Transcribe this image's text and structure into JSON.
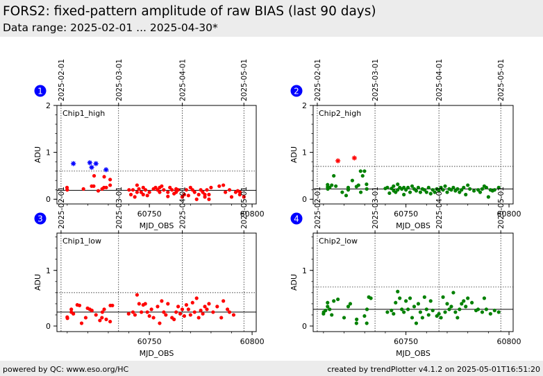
{
  "title": "FORS2: fixed-pattern amplitude of raw BIAS (last 90 days)",
  "subtitle": "Data range: 2025-02-01 ... 2025-04-30*",
  "footer": {
    "left": "powered by QC: www.eso.org/HC",
    "right": "created by trendPlotter v4.1.2 on 2025-05-01T16:51:20"
  },
  "colors": {
    "chip1": "#ff0000",
    "chip2": "#008000",
    "outlier_chip1": "#0000ff",
    "outlier_chip2": "#ff0000",
    "badge": "#0000ff"
  },
  "chart_data": [
    {
      "panel": "1",
      "type": "scatter",
      "label": "Chip1_high",
      "xlabel": "MJD_OBS",
      "ylabel": "ADU",
      "xlim": [
        60705,
        60802
      ],
      "ylim": [
        -0.1,
        2.0
      ],
      "xticks": [
        60750,
        60800
      ],
      "yticks": [
        0,
        1,
        2
      ],
      "date_ticks": [
        {
          "x": 60707,
          "label": "2025-02-01"
        },
        {
          "x": 60735,
          "label": "2025-03-01"
        },
        {
          "x": 60766,
          "label": "2025-04-01"
        },
        {
          "x": 60796,
          "label": "2025-05-01"
        }
      ],
      "median": 0.19,
      "threshold": 0.6,
      "points": [
        [
          60709.9,
          0.25
        ],
        [
          60710.0,
          0.2
        ],
        [
          60717.9,
          0.22
        ],
        [
          60721.9,
          0.28
        ],
        [
          60722.9,
          0.28
        ],
        [
          60723.1,
          0.5
        ],
        [
          60725.1,
          0.18
        ],
        [
          60727.0,
          0.22
        ],
        [
          60727.9,
          0.25
        ],
        [
          60728.0,
          0.48
        ],
        [
          60729.0,
          0.25
        ],
        [
          60730.9,
          0.42
        ],
        [
          60730.9,
          0.3
        ],
        [
          60740.1,
          0.2
        ],
        [
          60741.0,
          0.1
        ],
        [
          60742.0,
          0.2
        ],
        [
          60742.9,
          0.05
        ],
        [
          60744.0,
          0.3
        ],
        [
          60744.0,
          0.15
        ],
        [
          60744.9,
          0.22
        ],
        [
          60746.0,
          0.15
        ],
        [
          60747.0,
          0.1
        ],
        [
          60747.0,
          0.25
        ],
        [
          60748.1,
          0.2
        ],
        [
          60749.0,
          0.08
        ],
        [
          60750.0,
          0.15
        ],
        [
          60752.0,
          0.22
        ],
        [
          60753.0,
          0.25
        ],
        [
          60754.0,
          0.2
        ],
        [
          60755.0,
          0.15
        ],
        [
          60755.0,
          0.25
        ],
        [
          60756.0,
          0.28
        ],
        [
          60757.0,
          0.2
        ],
        [
          60759.0,
          0.06
        ],
        [
          60759.0,
          0.15
        ],
        [
          60760.0,
          0.25
        ],
        [
          60761.0,
          0.2
        ],
        [
          60762.0,
          0.12
        ],
        [
          60763.0,
          0.15
        ],
        [
          60763.0,
          0.22
        ],
        [
          60764.0,
          0.2
        ],
        [
          60766.0,
          0.05
        ],
        [
          60767.0,
          0.1
        ],
        [
          60768.0,
          0.2
        ],
        [
          60769.0,
          0.08
        ],
        [
          60770.0,
          0.25
        ],
        [
          60771.0,
          0.2
        ],
        [
          60772.0,
          0.15
        ],
        [
          60773.0,
          0.0
        ],
        [
          60774.0,
          0.1
        ],
        [
          60775.0,
          0.2
        ],
        [
          60776.0,
          0.15
        ],
        [
          60777.0,
          0.05
        ],
        [
          60777.0,
          0.1
        ],
        [
          60778.0,
          0.2
        ],
        [
          60779.0,
          0.0
        ],
        [
          60779.0,
          0.1
        ],
        [
          60780.0,
          0.25
        ],
        [
          60784.0,
          0.28
        ],
        [
          60786.0,
          0.3
        ],
        [
          60787.0,
          0.15
        ],
        [
          60789.0,
          0.2
        ],
        [
          60790.0,
          0.05
        ],
        [
          60792.0,
          0.15
        ],
        [
          60793.0,
          0.18
        ],
        [
          60794.0,
          0.1
        ],
        [
          60794.1,
          0.15
        ],
        [
          60796.0,
          0.05
        ]
      ],
      "outliers": [
        [
          60713.0,
          0.76
        ],
        [
          60721.0,
          0.78
        ],
        [
          60721.9,
          0.68
        ],
        [
          60724.0,
          0.76
        ],
        [
          60728.9,
          0.63
        ]
      ]
    },
    {
      "panel": "2",
      "type": "scatter",
      "label": "Chip2_high",
      "xlabel": "MJD_OBS",
      "ylabel": "ADU",
      "xlim": [
        60705,
        60802
      ],
      "ylim": [
        -0.1,
        2.0
      ],
      "xticks": [
        60750,
        60800
      ],
      "yticks": [
        0,
        1,
        2
      ],
      "date_ticks": [
        {
          "x": 60707,
          "label": "2025-02-01"
        },
        {
          "x": 60735,
          "label": "2025-03-01"
        },
        {
          "x": 60766,
          "label": "2025-04-01"
        },
        {
          "x": 60796,
          "label": "2025-05-01"
        }
      ],
      "median": 0.22,
      "threshold": 0.7,
      "points": [
        [
          60712.0,
          0.26
        ],
        [
          60712.0,
          0.31
        ],
        [
          60712.1,
          0.22
        ],
        [
          60713.0,
          0.25
        ],
        [
          60714.0,
          0.3
        ],
        [
          60715.0,
          0.5
        ],
        [
          60716.0,
          0.28
        ],
        [
          60719.1,
          0.15
        ],
        [
          60721.0,
          0.08
        ],
        [
          60722.0,
          0.25
        ],
        [
          60722.0,
          0.2
        ],
        [
          60724.0,
          0.4
        ],
        [
          60726.0,
          0.27
        ],
        [
          60727.0,
          0.3
        ],
        [
          60728.0,
          0.6
        ],
        [
          60728.1,
          0.15
        ],
        [
          60729.0,
          0.5
        ],
        [
          60729.9,
          0.6
        ],
        [
          60730.9,
          0.32
        ],
        [
          60731.0,
          0.22
        ],
        [
          60740.0,
          0.23
        ],
        [
          60741.0,
          0.25
        ],
        [
          60742.0,
          0.13
        ],
        [
          60743.0,
          0.23
        ],
        [
          60744.0,
          0.28
        ],
        [
          60744.1,
          0.18
        ],
        [
          60745.0,
          0.15
        ],
        [
          60746.0,
          0.32
        ],
        [
          60746.0,
          0.2
        ],
        [
          60747.0,
          0.25
        ],
        [
          60748.0,
          0.22
        ],
        [
          60749.0,
          0.1
        ],
        [
          60749.0,
          0.25
        ],
        [
          60750.0,
          0.2
        ],
        [
          60751.0,
          0.25
        ],
        [
          60752.0,
          0.15
        ],
        [
          60753.0,
          0.28
        ],
        [
          60754.0,
          0.22
        ],
        [
          60755.0,
          0.18
        ],
        [
          60756.0,
          0.25
        ],
        [
          60757.0,
          0.15
        ],
        [
          60758.0,
          0.22
        ],
        [
          60759.0,
          0.2
        ],
        [
          60760.0,
          0.15
        ],
        [
          60761.0,
          0.25
        ],
        [
          60762.0,
          0.12
        ],
        [
          60763.0,
          0.2
        ],
        [
          60764.0,
          0.15
        ],
        [
          60765.0,
          0.22
        ],
        [
          60766.0,
          0.18
        ],
        [
          60767.0,
          0.25
        ],
        [
          60768.0,
          0.2
        ],
        [
          60769.0,
          0.28
        ],
        [
          60770.0,
          0.15
        ],
        [
          60771.0,
          0.22
        ],
        [
          60772.0,
          0.2
        ],
        [
          60773.0,
          0.25
        ],
        [
          60774.0,
          0.18
        ],
        [
          60775.0,
          0.22
        ],
        [
          60776.0,
          0.15
        ],
        [
          60777.0,
          0.2
        ],
        [
          60778.0,
          0.25
        ],
        [
          60779.0,
          0.1
        ],
        [
          60780.0,
          0.3
        ],
        [
          60781.0,
          0.22
        ],
        [
          60783.0,
          0.18
        ],
        [
          60785.0,
          0.2
        ],
        [
          60786.0,
          0.15
        ],
        [
          60787.0,
          0.22
        ],
        [
          60788.0,
          0.28
        ],
        [
          60789.0,
          0.25
        ],
        [
          60790.0,
          0.05
        ],
        [
          60791.0,
          0.2
        ],
        [
          60792.0,
          0.18
        ],
        [
          60793.0,
          0.2
        ],
        [
          60795.0,
          0.25
        ]
      ],
      "outliers": [
        [
          60717.0,
          0.82
        ],
        [
          60725.0,
          0.88
        ]
      ]
    },
    {
      "panel": "3",
      "type": "scatter",
      "label": "Chip1_low",
      "xlabel": "MJD_OBS",
      "ylabel": "ADU",
      "xlim": [
        60705,
        60802
      ],
      "ylim": [
        -0.1,
        1.67
      ],
      "xticks": [
        60750,
        60800
      ],
      "yticks": [
        0,
        1
      ],
      "date_ticks": [
        {
          "x": 60707,
          "label": "2025-02-01"
        },
        {
          "x": 60735,
          "label": "2025-03-01"
        },
        {
          "x": 60766,
          "label": "2025-04-01"
        },
        {
          "x": 60796,
          "label": "2025-05-01"
        }
      ],
      "median": 0.25,
      "threshold": 0.6,
      "points": [
        [
          60710.0,
          0.16
        ],
        [
          60710.1,
          0.14
        ],
        [
          60712.0,
          0.3
        ],
        [
          60712.0,
          0.25
        ],
        [
          60713.0,
          0.22
        ],
        [
          60714.9,
          0.38
        ],
        [
          60716.0,
          0.37
        ],
        [
          60717.0,
          0.05
        ],
        [
          60719.0,
          0.15
        ],
        [
          60719.9,
          0.32
        ],
        [
          60721.0,
          0.3
        ],
        [
          60722.0,
          0.28
        ],
        [
          60724.0,
          0.2
        ],
        [
          60725.9,
          0.1
        ],
        [
          60726.9,
          0.15
        ],
        [
          60727.1,
          0.25
        ],
        [
          60728.0,
          0.3
        ],
        [
          60729.0,
          0.12
        ],
        [
          60730.9,
          0.08
        ],
        [
          60731.0,
          0.37
        ],
        [
          60732.0,
          0.37
        ],
        [
          60739.9,
          0.22
        ],
        [
          60742.0,
          0.25
        ],
        [
          60743.0,
          0.2
        ],
        [
          60744.0,
          0.56
        ],
        [
          60745.0,
          0.4
        ],
        [
          60746.1,
          0.25
        ],
        [
          60747.0,
          0.38
        ],
        [
          60748.0,
          0.4
        ],
        [
          60749.0,
          0.25
        ],
        [
          60750.0,
          0.18
        ],
        [
          60751.0,
          0.3
        ],
        [
          60752.0,
          0.15
        ],
        [
          60754.0,
          0.35
        ],
        [
          60755.0,
          0.05
        ],
        [
          60756.0,
          0.45
        ],
        [
          60757.0,
          0.25
        ],
        [
          60758.0,
          0.2
        ],
        [
          60759.0,
          0.4
        ],
        [
          60761.0,
          0.15
        ],
        [
          60762.0,
          0.12
        ],
        [
          60763.0,
          0.25
        ],
        [
          60764.0,
          0.35
        ],
        [
          60765.0,
          0.22
        ],
        [
          60766.0,
          0.3
        ],
        [
          60767.0,
          0.18
        ],
        [
          60768.0,
          0.38
        ],
        [
          60769.0,
          0.3
        ],
        [
          60770.0,
          0.2
        ],
        [
          60771.0,
          0.42
        ],
        [
          60772.0,
          0.25
        ],
        [
          60773.0,
          0.5
        ],
        [
          60774.0,
          0.15
        ],
        [
          60775.0,
          0.28
        ],
        [
          60776.0,
          0.22
        ],
        [
          60777.0,
          0.35
        ],
        [
          60778.0,
          0.3
        ],
        [
          60779.0,
          0.4
        ],
        [
          60781.0,
          0.25
        ],
        [
          60783.0,
          0.35
        ],
        [
          60785.0,
          0.15
        ],
        [
          60786.0,
          0.45
        ],
        [
          60788.0,
          0.3
        ],
        [
          60789.0,
          0.25
        ],
        [
          60791.0,
          0.2
        ]
      ],
      "outliers": []
    },
    {
      "panel": "4",
      "type": "scatter",
      "label": "Chip2_low",
      "xlabel": "MJD_OBS",
      "ylabel": "ADU",
      "xlim": [
        60705,
        60802
      ],
      "ylim": [
        -0.1,
        1.67
      ],
      "xticks": [
        60750,
        60800
      ],
      "yticks": [
        0,
        1
      ],
      "date_ticks": [
        {
          "x": 60707,
          "label": "2025-02-01"
        },
        {
          "x": 60735,
          "label": "2025-03-01"
        },
        {
          "x": 60766,
          "label": "2025-04-01"
        },
        {
          "x": 60796,
          "label": "2025-05-01"
        }
      ],
      "median": 0.3,
      "threshold": 0.7,
      "points": [
        [
          60710.0,
          0.22
        ],
        [
          60710.1,
          0.25
        ],
        [
          60711.0,
          0.28
        ],
        [
          60712.0,
          0.42
        ],
        [
          60712.0,
          0.35
        ],
        [
          60713.0,
          0.3
        ],
        [
          60714.0,
          0.2
        ],
        [
          60715.0,
          0.45
        ],
        [
          60717.0,
          0.48
        ],
        [
          60720.0,
          0.15
        ],
        [
          60722.0,
          0.35
        ],
        [
          60723.0,
          0.4
        ],
        [
          60726.0,
          0.05
        ],
        [
          60726.1,
          0.12
        ],
        [
          60729.9,
          0.18
        ],
        [
          60731.0,
          0.05
        ],
        [
          60731.1,
          0.3
        ],
        [
          60732.0,
          0.52
        ],
        [
          60733.0,
          0.5
        ],
        [
          60741.0,
          0.25
        ],
        [
          60743.0,
          0.28
        ],
        [
          60744.0,
          0.22
        ],
        [
          60745.0,
          0.42
        ],
        [
          60746.0,
          0.62
        ],
        [
          60747.0,
          0.5
        ],
        [
          60748.0,
          0.3
        ],
        [
          60749.0,
          0.25
        ],
        [
          60750.0,
          0.45
        ],
        [
          60751.0,
          0.3
        ],
        [
          60752.0,
          0.5
        ],
        [
          60753.0,
          0.15
        ],
        [
          60754.0,
          0.35
        ],
        [
          60755.0,
          0.05
        ],
        [
          60756.0,
          0.4
        ],
        [
          60757.0,
          0.25
        ],
        [
          60758.0,
          0.15
        ],
        [
          60759.0,
          0.52
        ],
        [
          60760.0,
          0.3
        ],
        [
          60761.0,
          0.2
        ],
        [
          60762.0,
          0.45
        ],
        [
          60763.0,
          0.28
        ],
        [
          60765.0,
          0.18
        ],
        [
          60766.0,
          0.22
        ],
        [
          60767.0,
          0.15
        ],
        [
          60768.0,
          0.52
        ],
        [
          60769.0,
          0.25
        ],
        [
          60770.0,
          0.4
        ],
        [
          60771.0,
          0.3
        ],
        [
          60772.0,
          0.35
        ],
        [
          60773.0,
          0.6
        ],
        [
          60774.0,
          0.25
        ],
        [
          60775.0,
          0.15
        ],
        [
          60776.0,
          0.3
        ],
        [
          60777.0,
          0.4
        ],
        [
          60778.0,
          0.45
        ],
        [
          60779.0,
          0.35
        ],
        [
          60780.0,
          0.5
        ],
        [
          60782.0,
          0.42
        ],
        [
          60784.0,
          0.28
        ],
        [
          60785.0,
          0.3
        ],
        [
          60787.0,
          0.25
        ],
        [
          60788.0,
          0.5
        ],
        [
          60789.0,
          0.3
        ],
        [
          60791.0,
          0.22
        ],
        [
          60793.0,
          0.28
        ],
        [
          60795.0,
          0.25
        ]
      ],
      "outliers": []
    }
  ]
}
